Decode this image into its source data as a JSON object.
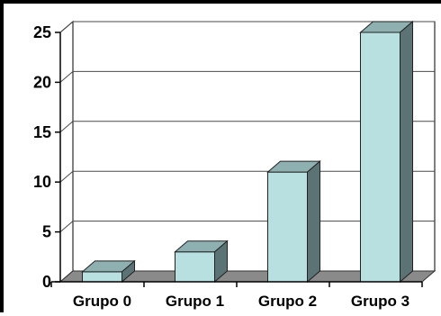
{
  "chart_data": {
    "type": "bar",
    "style": "3d",
    "categories": [
      "Grupo 0",
      "Grupo 1",
      "Grupo 2",
      "Grupo 3"
    ],
    "values": [
      1,
      3,
      11,
      25
    ],
    "ylim": [
      0,
      25
    ],
    "yticks": [
      "0",
      "5",
      "10",
      "15",
      "20",
      "25"
    ],
    "grid": true,
    "legend": "none",
    "colors": {
      "bar_front": "#b9e0e1",
      "bar_top": "#8fb0b1",
      "bar_side": "#5b7374",
      "floor": "#8a8a8a",
      "wall": "#ffffff",
      "grid": "#4a4a4a"
    }
  }
}
